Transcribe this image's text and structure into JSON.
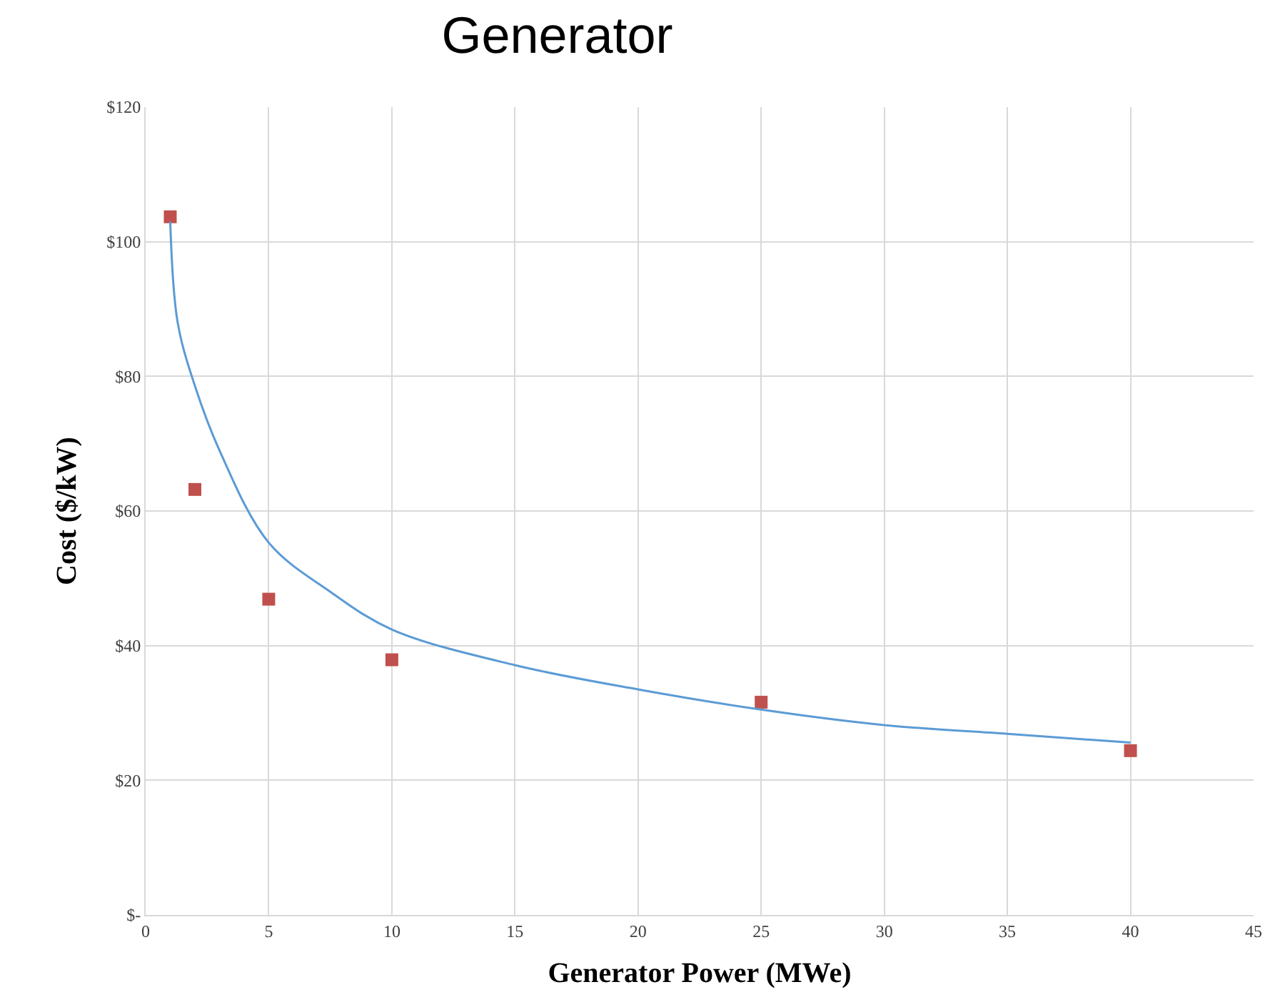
{
  "chart_data": {
    "type": "scatter",
    "title": "Generator",
    "xlabel": "Generator Power (MWe)",
    "ylabel": "Cost ($/kW)",
    "series": [
      {
        "color": "#c0504d",
        "marker": "square",
        "x": [
          1,
          2,
          5,
          10,
          25,
          40
        ],
        "values": [
          103.7,
          63.2,
          46.9,
          37.9,
          31.6,
          24.4
        ]
      },
      {
        "type": "line",
        "color": "#5b9bd5",
        "marker": "none",
        "line_style": "solid",
        "x": [
          1,
          1.3,
          2,
          3,
          5,
          7.5,
          10,
          15,
          20,
          25,
          30,
          35,
          40
        ],
        "values": [
          103,
          88,
          78.6,
          69,
          55.3,
          48,
          42.4,
          37.1,
          33.5,
          30.5,
          28.2,
          26.9,
          25.6
        ]
      }
    ],
    "xlim": [
      0,
      45
    ],
    "xticks": [
      0,
      5,
      10,
      15,
      20,
      25,
      30,
      35,
      40,
      45
    ],
    "ylim": [
      0,
      120
    ],
    "yticks": [
      {
        "value": 0,
        "label": "$-"
      },
      {
        "value": 20,
        "label": "$20"
      },
      {
        "value": 40,
        "label": "$40"
      },
      {
        "value": 60,
        "label": "$60"
      },
      {
        "value": 80,
        "label": "$80"
      },
      {
        "value": 100,
        "label": "$100"
      },
      {
        "value": 120,
        "label": "$120"
      }
    ],
    "grid": true,
    "legend": false
  }
}
